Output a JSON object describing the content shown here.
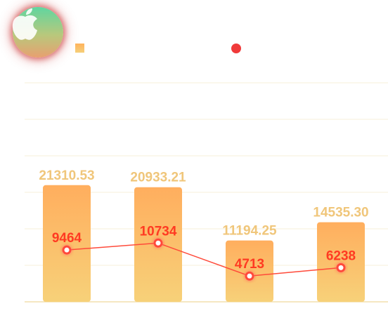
{
  "colors": {
    "bar_top": "#ffae5e",
    "bar_bottom": "#f7d179",
    "bar_label": "#f0c67a",
    "line": "#ff4a3a",
    "line_label": "#ff3a22",
    "grid": "#f7efd8",
    "axis": "#f2dfae"
  },
  "logo": {
    "icon": "apple-icon"
  },
  "chart_data": {
    "type": "bar",
    "categories": [
      "",
      "",
      "",
      ""
    ],
    "title": "",
    "xlabel": "",
    "ylabel": "",
    "grid": true,
    "legend": "top",
    "ylim": [
      0,
      40000
    ],
    "series": [
      {
        "type": "bar",
        "values": [
          21310.53,
          20933.21,
          11194.25,
          14535.3
        ]
      },
      {
        "type": "line",
        "values": [
          9464,
          10734,
          4713,
          6238
        ]
      }
    ],
    "bar_labels": [
      "21310.53",
      "20933.21",
      "11194.25",
      "14535.30"
    ],
    "line_labels": [
      "9464",
      "10734",
      "4713",
      "6238"
    ]
  }
}
